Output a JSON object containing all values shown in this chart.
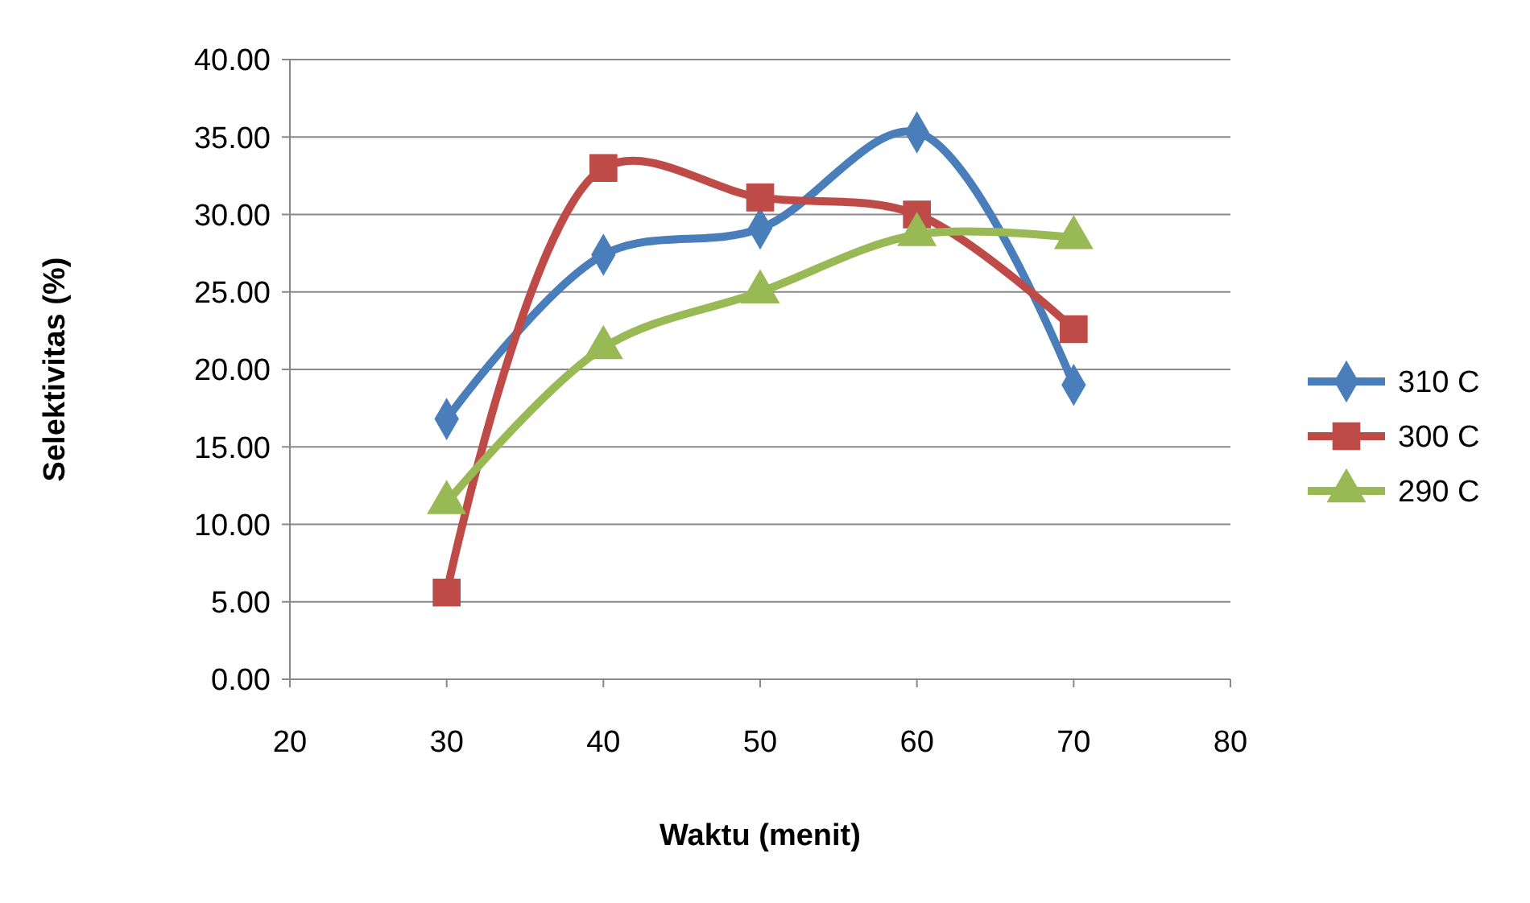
{
  "chart_data": {
    "type": "line",
    "xlabel": "Waktu (menit)",
    "ylabel": "Selektivitas (%)",
    "x": [
      30,
      40,
      50,
      60,
      70
    ],
    "xlim": [
      20,
      80
    ],
    "xticks": [
      20,
      30,
      40,
      50,
      60,
      70,
      80
    ],
    "ylim": [
      0,
      40
    ],
    "yticks": [
      {
        "value": 0,
        "label": "0.00"
      },
      {
        "value": 5,
        "label": "5.00"
      },
      {
        "value": 10,
        "label": "10.00"
      },
      {
        "value": 15,
        "label": "15.00"
      },
      {
        "value": 20,
        "label": "20.00"
      },
      {
        "value": 25,
        "label": "25.00"
      },
      {
        "value": 30,
        "label": "30.00"
      },
      {
        "value": 35,
        "label": "35.00"
      },
      {
        "value": 40,
        "label": "40.00"
      }
    ],
    "grid": "y",
    "legend": "right",
    "line_style": "solid",
    "series": [
      {
        "name": "310 C",
        "color": "#4a7ebb",
        "marker": "diamond",
        "values": [
          16.8,
          27.4,
          29.1,
          35.3,
          19.0
        ]
      },
      {
        "name": "300 C",
        "color": "#be4b48",
        "marker": "square",
        "values": [
          5.6,
          33.0,
          31.1,
          30.0,
          22.6
        ]
      },
      {
        "name": "290 C",
        "color": "#98b954",
        "marker": "triangle",
        "values": [
          11.4,
          21.4,
          25.0,
          28.7,
          28.5
        ]
      }
    ]
  }
}
